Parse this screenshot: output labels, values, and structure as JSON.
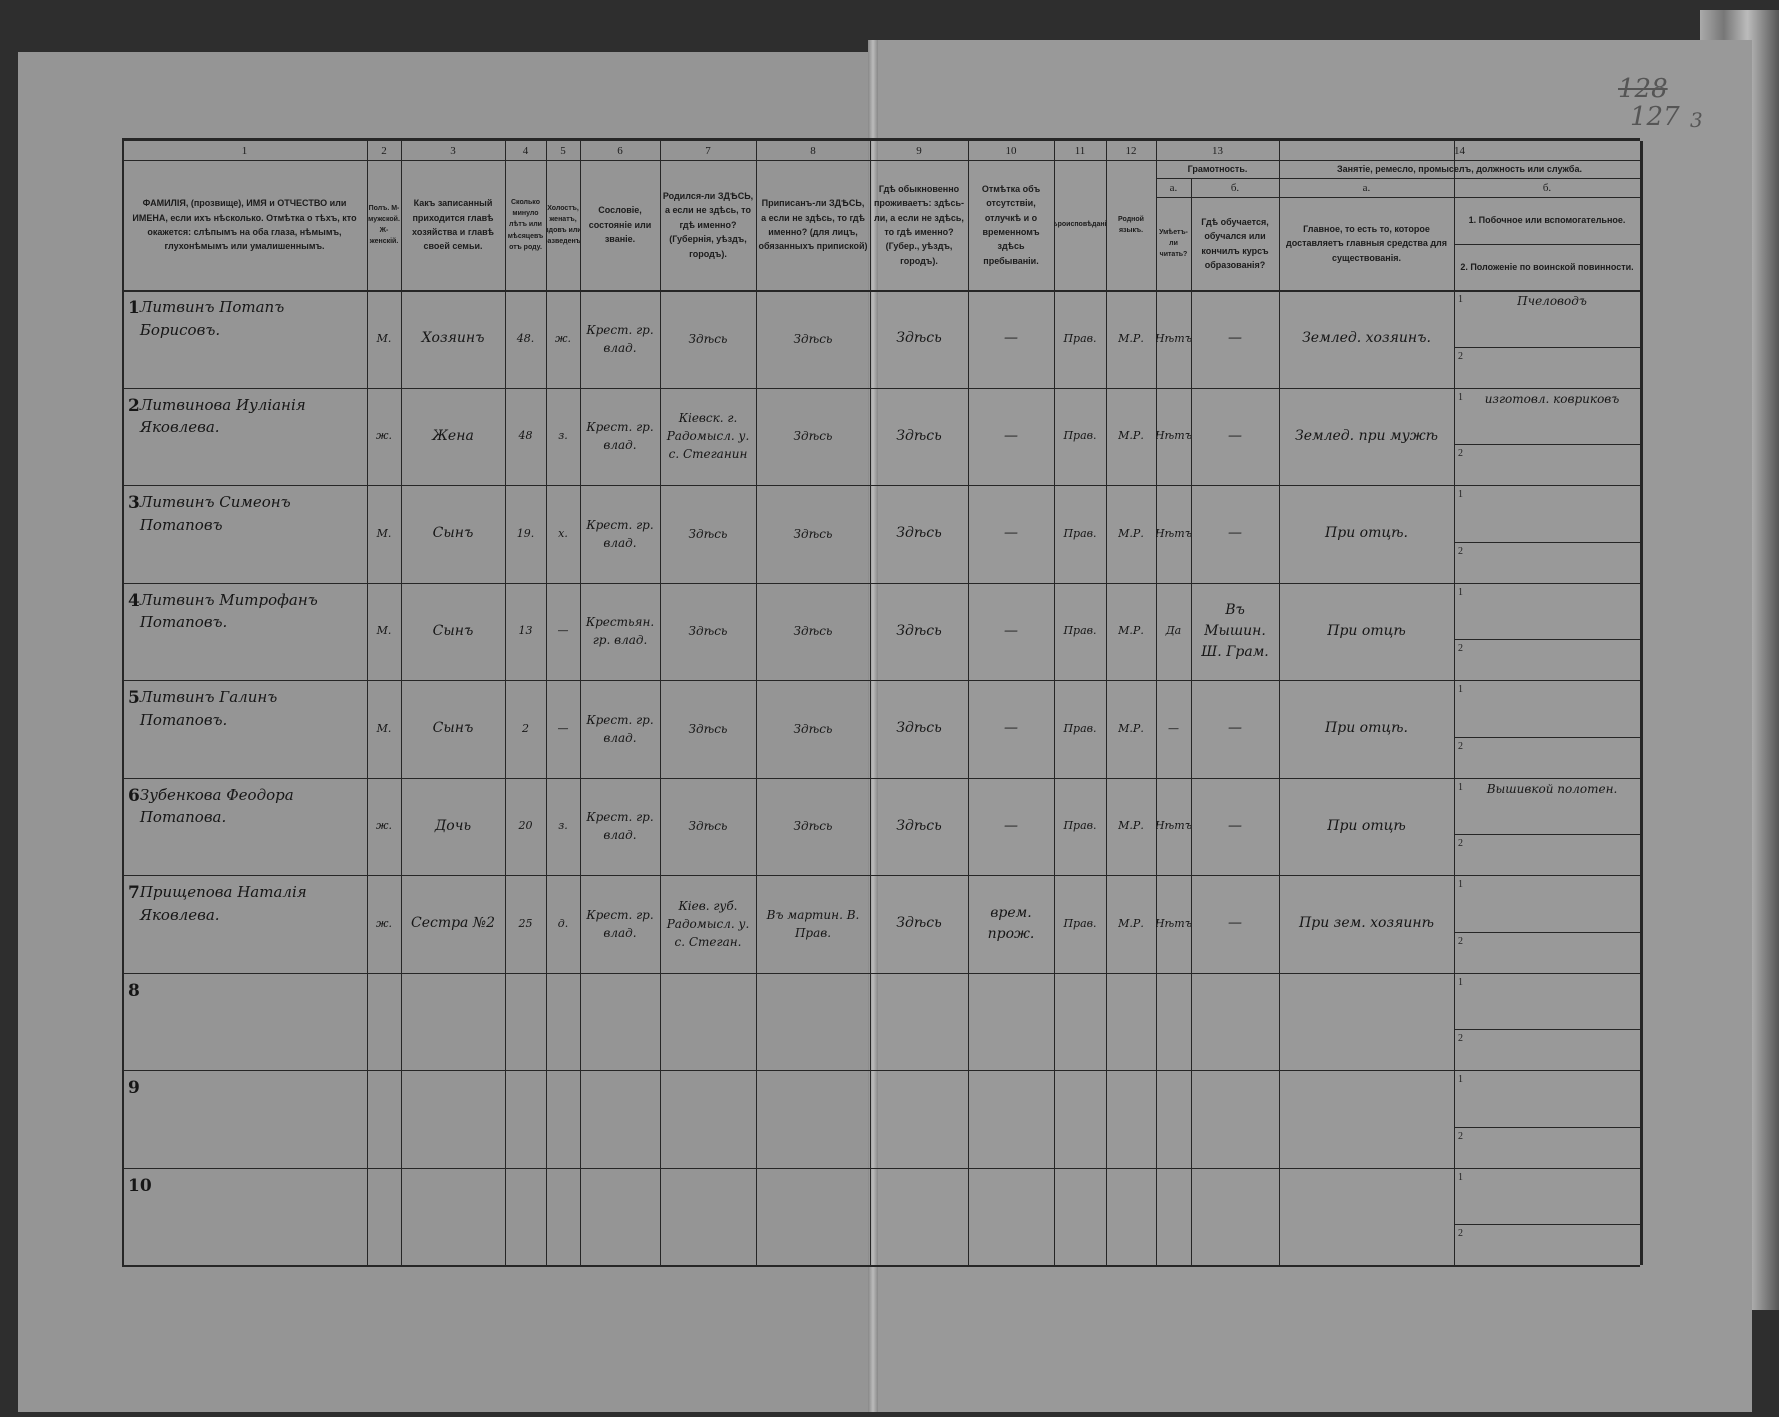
{
  "page_numbers": {
    "crossed": "128",
    "current": "127",
    "side_mark": "3"
  },
  "columns": [
    {
      "num": "1",
      "header": "ФАМИЛІЯ, (прозвище), ИМЯ и ОТЧЕСТВО или ИМЕНА, если ихъ нѣсколько. Отмѣтка о тѣхъ, кто окажется: слѣпымъ на оба глаза, нѣмымъ, глухонѣмымъ или умалишеннымъ."
    },
    {
      "num": "2",
      "header": "Полъ. М-мужской. Ж-женскій."
    },
    {
      "num": "3",
      "header": "Какъ записанный приходится главѣ хозяйства и главѣ своей семьи."
    },
    {
      "num": "4",
      "header": "Сколько минуло лѣтъ или мѣсяцевъ отъ роду."
    },
    {
      "num": "5",
      "header": "Холостъ, женатъ, вдовъ или разведенъ."
    },
    {
      "num": "6",
      "header": "Сословіе, состояніе или званіе."
    },
    {
      "num": "7",
      "header": "Родился-ли ЗДѢСЬ, а если не здѣсь, то гдѣ именно? (Губернія, уѣздъ, городъ)."
    },
    {
      "num": "8",
      "header": "Приписанъ-ли ЗДѢСЬ, а если не здѣсь, то гдѣ именно? (для лицъ, обязанныхъ припиской)"
    },
    {
      "num": "9",
      "header": "Гдѣ обыкновенно проживаетъ: здѣсь-ли, а если не здѣсь, то гдѣ именно? (Губер., уѣздъ, городъ)."
    },
    {
      "num": "10",
      "header": "Отмѣтка объ отсутствіи, отлучкѣ и о временномъ здѣсь пребываніи."
    },
    {
      "num": "11",
      "header": "Вѣроисповѣданіе."
    },
    {
      "num": "12",
      "header": "Родной языкъ."
    },
    {
      "num": "13",
      "header": "Грамотность.",
      "sub": [
        {
          "letter": "а.",
          "header": "Умѣетъ-ли читать?"
        },
        {
          "letter": "б.",
          "header": "Гдѣ обучается, обучался или кончилъ курсъ образованія?"
        }
      ]
    },
    {
      "num": "14",
      "header": "Занятіе, ремесло, промыселъ, должность или служба.",
      "sub": [
        {
          "letter": "а.",
          "header": "Главное, то есть то, которое доставляетъ главныя средства для существованія."
        },
        {
          "letter": "б.",
          "header1": "1. Побочное или вспомогательное.",
          "header2": "2. Положеніе по воинской повинности."
        }
      ]
    }
  ],
  "rows": [
    {
      "n": "1",
      "name": "Литвинъ Потапъ Борисовъ.",
      "sex": "М.",
      "relation": "Хозяинъ",
      "age": "48.",
      "marital": "ж.",
      "estate": "Крест. гр. влад.",
      "born": "Здѣсь",
      "registered": "Здѣсь",
      "resides": "Здѣсь",
      "absence": "—",
      "religion": "Прав.",
      "language": "М.Р.",
      "reads": "Нѣтъ",
      "school": "—",
      "occupation": "Землед. хозяинъ.",
      "occ1": "Пчеловодъ",
      "occ2": ""
    },
    {
      "n": "2",
      "name": "Литвинова Иуліанія Яковлева.",
      "sex": "ж.",
      "relation": "Жена",
      "age": "48",
      "marital": "з.",
      "estate": "Крест. гр. влад.",
      "born": "Кіевск. г. Радомысл. у. с. Стеганин",
      "registered": "Здѣсь",
      "resides": "Здѣсь",
      "absence": "—",
      "religion": "Прав.",
      "language": "М.Р.",
      "reads": "Нѣтъ",
      "school": "—",
      "occupation": "Землед. при мужѣ",
      "occ1": "изготовл. ковриковъ",
      "occ2": ""
    },
    {
      "n": "3",
      "name": "Литвинъ Симеонъ Потаповъ",
      "sex": "М.",
      "relation": "Сынъ",
      "age": "19.",
      "marital": "х.",
      "estate": "Крест. гр. влад.",
      "born": "Здѣсь",
      "registered": "Здѣсь",
      "resides": "Здѣсь",
      "absence": "—",
      "religion": "Прав.",
      "language": "М.Р.",
      "reads": "Нѣтъ",
      "school": "—",
      "occupation": "При отцѣ.",
      "occ1": "",
      "occ2": ""
    },
    {
      "n": "4",
      "name": "Литвинъ Митрофанъ Потаповъ.",
      "sex": "М.",
      "relation": "Сынъ",
      "age": "13",
      "marital": "—",
      "estate": "Крестьян. гр. влад.",
      "born": "Здѣсь",
      "registered": "Здѣсь",
      "resides": "Здѣсь",
      "absence": "—",
      "religion": "Прав.",
      "language": "М.Р.",
      "reads": "Да",
      "school": "Въ Мышин. Ш. Грам.",
      "occupation": "При отцѣ",
      "occ1": "",
      "occ2": ""
    },
    {
      "n": "5",
      "name": "Литвинъ Галинъ Потаповъ.",
      "sex": "М.",
      "relation": "Сынъ",
      "age": "2",
      "marital": "—",
      "estate": "Крест. гр. влад.",
      "born": "Здѣсь",
      "registered": "Здѣсь",
      "resides": "Здѣсь",
      "absence": "—",
      "religion": "Прав.",
      "language": "М.Р.",
      "reads": "—",
      "school": "—",
      "occupation": "При отцѣ.",
      "occ1": "",
      "occ2": ""
    },
    {
      "n": "6",
      "name": "Зубенкова Феодора Потапова.",
      "sex": "ж.",
      "relation": "Дочь",
      "age": "20",
      "marital": "з.",
      "estate": "Крест. гр. влад.",
      "born": "Здѣсь",
      "registered": "Здѣсь",
      "resides": "Здѣсь",
      "absence": "—",
      "religion": "Прав.",
      "language": "М.Р.",
      "reads": "Нѣтъ",
      "school": "—",
      "occupation": "При отцѣ",
      "occ1": "Вышивкой полотен.",
      "occ2": ""
    },
    {
      "n": "7",
      "name": "Прищепова Наталія Яковлева.",
      "sex": "ж.",
      "relation": "Сестра №2",
      "age": "25",
      "marital": "д.",
      "estate": "Крест. гр. влад.",
      "born": "Кіев. губ. Радомысл. у. с. Стеган.",
      "registered": "Въ мартин. В. Прав.",
      "resides": "Здѣсь",
      "absence": "врем. прож.",
      "religion": "Прав.",
      "language": "М.Р.",
      "reads": "Нѣтъ",
      "school": "—",
      "occupation": "При зем. хозяинѣ",
      "occ1": "",
      "occ2": ""
    },
    {
      "n": "8"
    },
    {
      "n": "9"
    },
    {
      "n": "10"
    }
  ],
  "sub_line_labels": [
    "1",
    "2"
  ]
}
